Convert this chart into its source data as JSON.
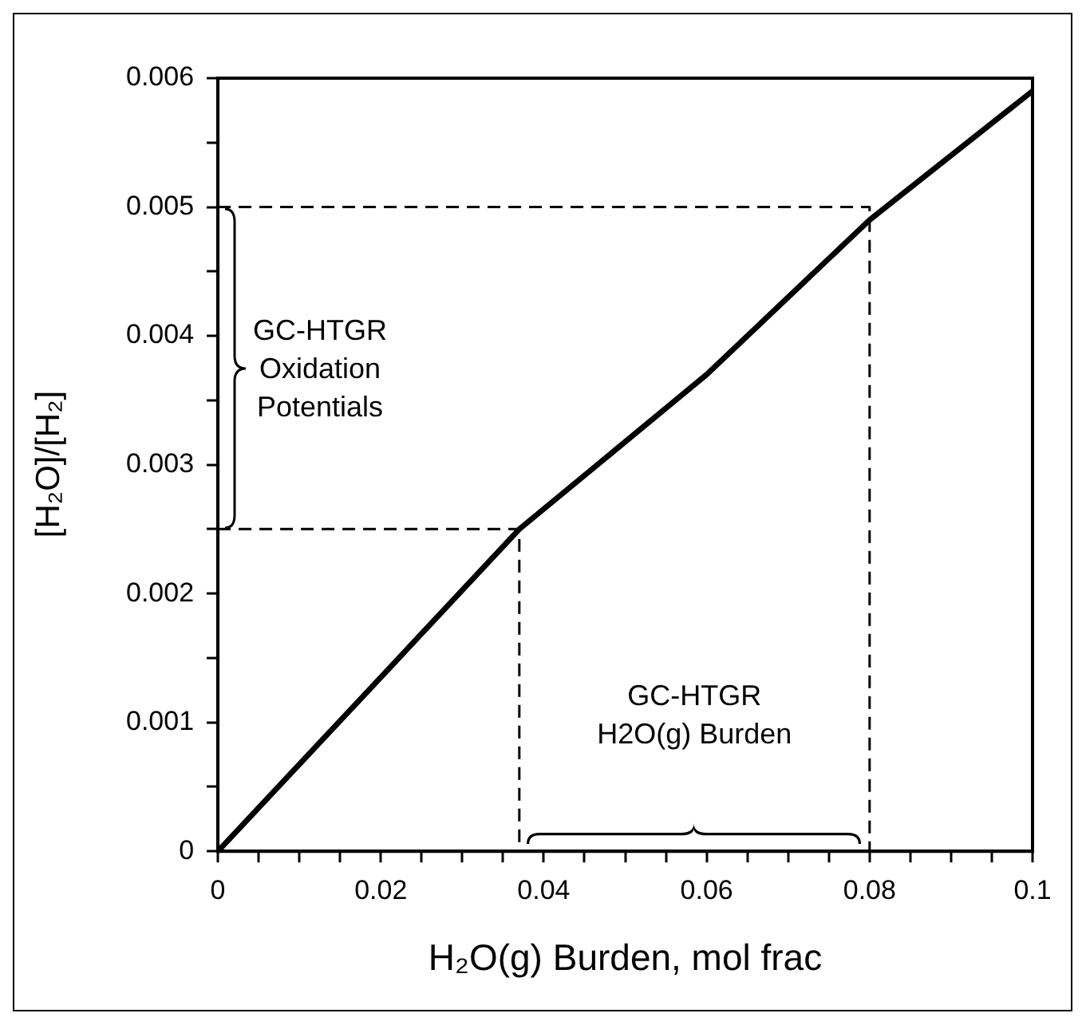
{
  "chart_data": {
    "type": "line",
    "xlabel": "H₂O(g) Burden, mol frac",
    "ylabel": "[H₂O]/[H₂]",
    "xlim": [
      0,
      0.1
    ],
    "ylim": [
      0,
      0.006
    ],
    "xticks": [
      0,
      {
        "value": 0.005,
        "label": null
      },
      0.02,
      {
        "value": 0.01,
        "label": null
      },
      {
        "value": 0.015,
        "label": null
      },
      {
        "value": 0.025,
        "label": null
      },
      {
        "value": 0.03,
        "label": null
      },
      {
        "value": 0.035,
        "label": null
      },
      0.04,
      {
        "value": 0.045,
        "label": null
      },
      {
        "value": 0.05,
        "label": null
      },
      {
        "value": 0.055,
        "label": null
      },
      0.06,
      {
        "value": 0.065,
        "label": null
      },
      {
        "value": 0.07,
        "label": null
      },
      {
        "value": 0.075,
        "label": null
      },
      0.08,
      {
        "value": 0.085,
        "label": null
      },
      {
        "value": 0.09,
        "label": null
      },
      {
        "value": 0.095,
        "label": null
      },
      0.1
    ],
    "yticks": [
      0,
      {
        "value": 0.0005,
        "label": null
      },
      0.001,
      {
        "value": 0.0015,
        "label": null
      },
      0.002,
      {
        "value": 0.0025,
        "label": null
      },
      0.003,
      {
        "value": 0.0035,
        "label": null
      },
      0.004,
      {
        "value": 0.0045,
        "label": null
      },
      0.005,
      {
        "value": 0.0055,
        "label": null
      },
      0.006
    ],
    "marker": "none",
    "series": [
      {
        "color": "#000000",
        "x": [
          0,
          0.02,
          0.037,
          0.06,
          0.08,
          0.1
        ],
        "values": [
          0,
          0.00135,
          0.0025,
          0.0037,
          0.0049,
          0.0059
        ]
      },
      {
        "color": "#000000",
        "line_style": "dashed",
        "x": [
          0,
          0.037,
          0.037
        ],
        "values": [
          0.0025,
          0.0025,
          0
        ]
      },
      {
        "color": "#000000",
        "line_style": "dashed",
        "x": [
          0,
          0.08,
          0.08
        ],
        "values": [
          0.005,
          0.005,
          0
        ]
      }
    ],
    "annotations": [
      "GC-HTGR\nOxidation\nPotentials",
      "GC-HTGR\nH2O(g) Burden"
    ]
  }
}
